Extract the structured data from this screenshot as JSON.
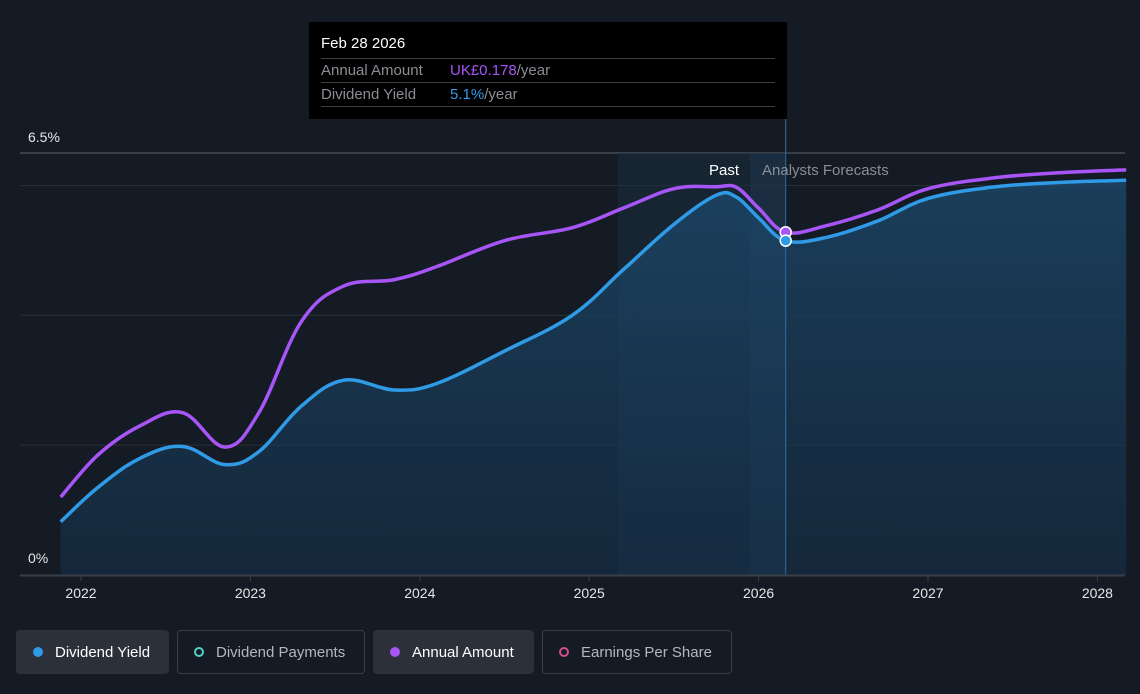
{
  "tooltip": {
    "date": "Feb 28 2026",
    "rows": [
      {
        "label": "Annual Amount",
        "value": "UK£0.178",
        "suffix": "/year"
      },
      {
        "label": "Dividend Yield",
        "value": "5.1%",
        "suffix": "/year"
      }
    ]
  },
  "legend": [
    {
      "label": "Dividend Yield",
      "color": "#2f9be6",
      "active": true,
      "icon": "filled-dot-icon"
    },
    {
      "label": "Dividend Payments",
      "color": "#4fd1c5",
      "active": false,
      "icon": "hollow-circle-icon"
    },
    {
      "label": "Annual Amount",
      "color": "#a855f7",
      "active": true,
      "icon": "filled-dot-icon"
    },
    {
      "label": "Earnings Per Share",
      "color": "#d14f8c",
      "active": false,
      "icon": "hollow-circle-icon"
    }
  ],
  "colors": {
    "dividend_yield": "#2f9be6",
    "annual_amount": "#a855f7",
    "background": "#151b24",
    "grid": "#2a2f37"
  },
  "chart_data": {
    "type": "line",
    "title": "",
    "xlabel": "",
    "ylabel": "",
    "ylim": [
      0,
      6.5
    ],
    "y_tick_labels": [
      "0%",
      "6.5%"
    ],
    "x_tick_labels": [
      "2022",
      "2023",
      "2024",
      "2025",
      "2026",
      "2027",
      "2028"
    ],
    "x_ticks": [
      2022,
      2023,
      2024,
      2025,
      2026,
      2027,
      2028
    ],
    "xlim": [
      2021.88,
      2028.17
    ],
    "grid": true,
    "region_labels": {
      "past": "Past",
      "forecast": "Analysts Forecasts"
    },
    "past_end": 2026.16,
    "highlight_start": 2025.17,
    "series": [
      {
        "name": "Dividend Yield",
        "unit": "%",
        "area": true,
        "x": [
          2021.88,
          2022.1,
          2022.35,
          2022.6,
          2022.85,
          2023.05,
          2023.3,
          2023.55,
          2023.85,
          2024.1,
          2024.5,
          2024.9,
          2025.2,
          2025.5,
          2025.75,
          2025.87,
          2026.0,
          2026.16,
          2026.4,
          2026.7,
          2027.0,
          2027.4,
          2027.8,
          2028.17
        ],
        "values": [
          0.82,
          1.35,
          1.8,
          1.98,
          1.7,
          1.9,
          2.6,
          3.0,
          2.85,
          2.95,
          3.45,
          4.0,
          4.7,
          5.4,
          5.85,
          5.82,
          5.5,
          5.15,
          5.2,
          5.45,
          5.8,
          5.98,
          6.05,
          6.08
        ]
      },
      {
        "name": "Annual Amount",
        "unit": "GBP (scaled to yield axis)",
        "area": false,
        "x": [
          2021.88,
          2022.1,
          2022.35,
          2022.6,
          2022.85,
          2023.05,
          2023.3,
          2023.55,
          2023.85,
          2024.1,
          2024.5,
          2024.9,
          2025.2,
          2025.5,
          2025.75,
          2025.87,
          2026.0,
          2026.16,
          2026.4,
          2026.7,
          2027.0,
          2027.4,
          2027.8,
          2028.17
        ],
        "values": [
          1.2,
          1.85,
          2.3,
          2.5,
          1.97,
          2.5,
          3.9,
          4.45,
          4.55,
          4.75,
          5.15,
          5.35,
          5.65,
          5.95,
          5.98,
          5.97,
          5.65,
          5.28,
          5.38,
          5.62,
          5.95,
          6.12,
          6.2,
          6.24
        ]
      }
    ],
    "tooltip_point": {
      "x": 2026.16,
      "dividend_yield": 5.1,
      "annual_amount": 0.178
    }
  }
}
